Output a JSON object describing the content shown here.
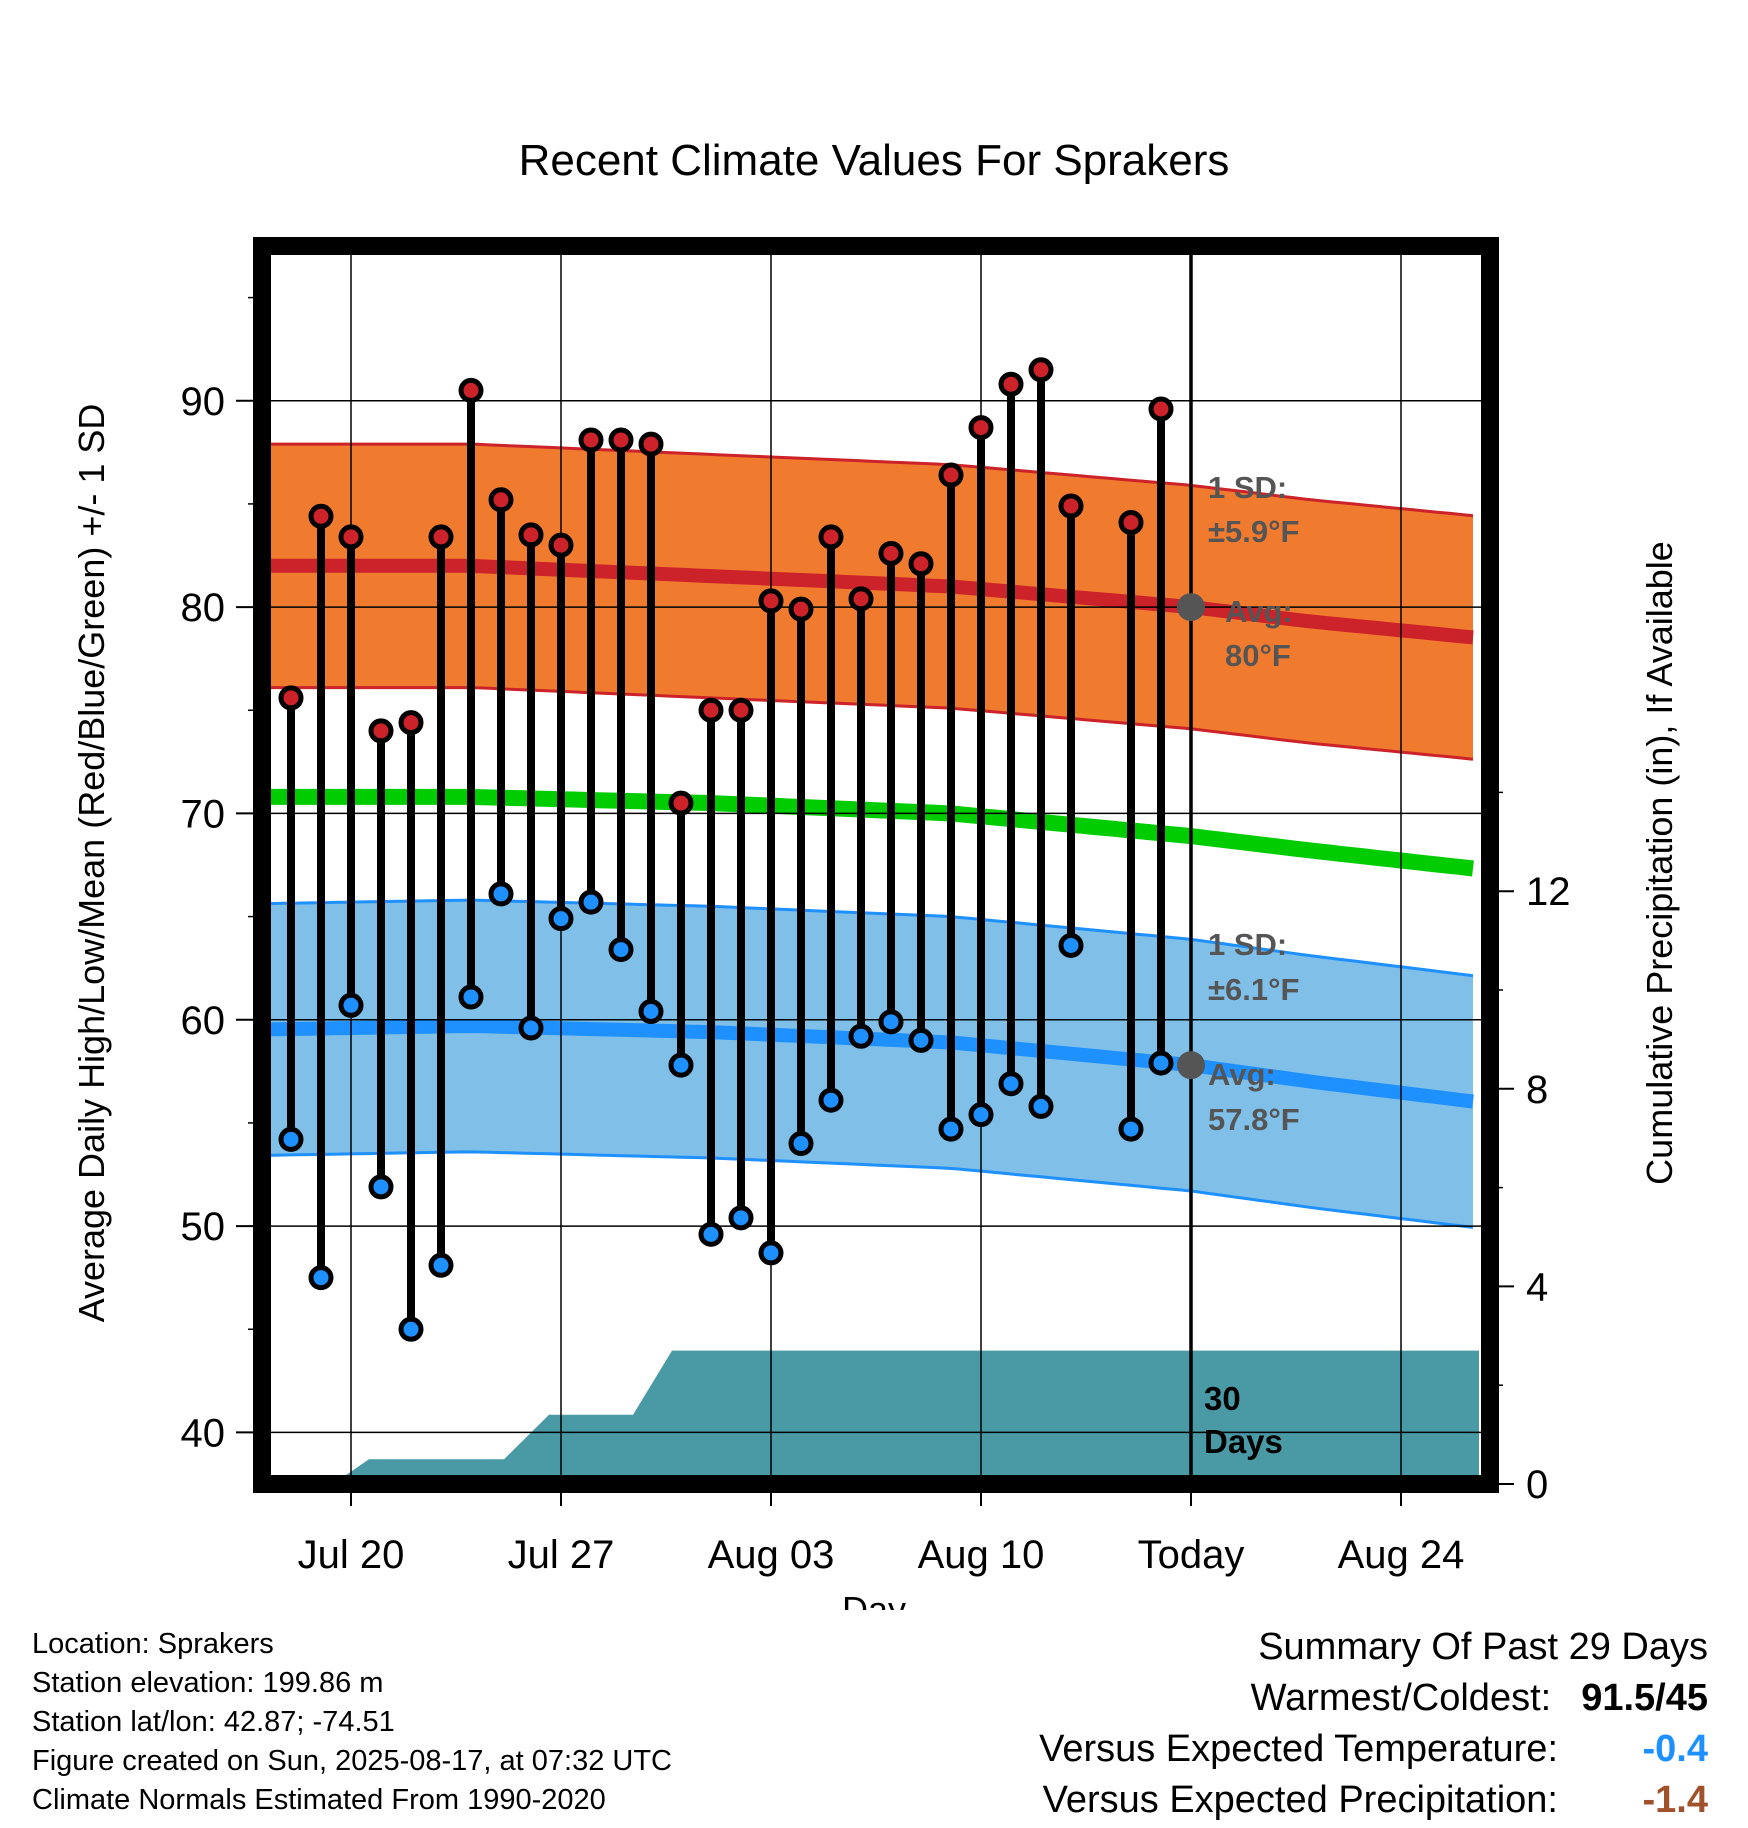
{
  "chart_data": {
    "type": "line",
    "title": "Recent Climate Values For Sprakers",
    "xlabel": "Day",
    "ylabel": "Average Daily High/Low/Mean (Red/Blue/Green) +/- 1 SD",
    "y2label": "Cumulative Precipitation (in), If Available",
    "ylim": [
      37.5,
      97.5
    ],
    "y_ticks": [
      40,
      50,
      60,
      70,
      80,
      90
    ],
    "y2lim": [
      0,
      16
    ],
    "y2_ticks": [
      0,
      4,
      8,
      12
    ],
    "x_tick_labels": [
      "Jul 20",
      "Jul 27",
      "Aug 03",
      "Aug 10",
      "Today",
      "Aug 24"
    ],
    "x_range_days": [
      -32.2,
      9.6
    ],
    "grid": true,
    "days_before_today": [
      -30,
      -29,
      -28,
      -27,
      -26,
      -25,
      -24,
      -23,
      -22,
      -21,
      -20,
      -19,
      -18,
      -17,
      -16,
      -15,
      -14,
      -13,
      -12,
      -11,
      -10,
      -9,
      -8,
      -7,
      -6,
      -5,
      -4,
      -2,
      -1
    ],
    "series": [
      {
        "name": "High",
        "color": "#cc2229",
        "values": [
          75.6,
          84.4,
          83.4,
          74.0,
          74.4,
          83.4,
          90.5,
          85.2,
          83.5,
          83.0,
          88.1,
          88.1,
          87.9,
          70.5,
          75.0,
          75.0,
          80.3,
          79.9,
          83.4,
          80.4,
          82.6,
          82.1,
          86.4,
          88.7,
          90.8,
          91.5,
          84.9,
          84.1,
          89.6
        ]
      },
      {
        "name": "Low",
        "color": "#1e90ff",
        "values": [
          54.2,
          47.5,
          60.7,
          51.9,
          45.0,
          48.1,
          61.1,
          66.1,
          59.6,
          64.9,
          65.7,
          63.4,
          60.4,
          57.8,
          49.6,
          50.4,
          48.7,
          54.0,
          56.1,
          59.2,
          59.9,
          59.0,
          54.7,
          55.4,
          56.9,
          55.8,
          63.6,
          54.7,
          57.9
        ]
      }
    ],
    "normals": {
      "high_avg": {
        "days": [
          -32,
          -24,
          -16,
          -8,
          0,
          4,
          9.6
        ],
        "values": [
          82.0,
          82.0,
          81.5,
          81.0,
          80.0,
          79.3,
          78.5
        ],
        "color": "#cc2229"
      },
      "high_sd_band": {
        "sd": 5.9,
        "color": "#f07b2f"
      },
      "mean_avg": {
        "days": [
          -32,
          -24,
          -16,
          -8,
          0,
          4,
          9.6
        ],
        "values": [
          70.8,
          70.8,
          70.5,
          70.0,
          68.9,
          68.2,
          67.3
        ],
        "color": "#00cc00"
      },
      "low_avg": {
        "days": [
          -32,
          -24,
          -16,
          -8,
          0,
          4,
          9.6
        ],
        "values": [
          59.5,
          59.7,
          59.4,
          58.9,
          57.8,
          57.0,
          56.0
        ],
        "color": "#1e90ff"
      },
      "low_sd_band": {
        "sd": 6.1,
        "color": "#7fbfe8"
      }
    },
    "precip": {
      "color": "#4a9aa5",
      "days": [
        -32.2,
        -28.6,
        -27.4,
        -22.9,
        -21.4,
        -18.6,
        -17.3,
        9.6
      ],
      "values": [
        0,
        0,
        0.5,
        0.5,
        1.4,
        1.4,
        2.7,
        2.7
      ]
    },
    "today_marker": {
      "high_avg": 80,
      "low_avg": 57.8,
      "color": "#555555"
    },
    "annotations": {
      "high_sd_line1": "1 SD:",
      "high_sd_line2": "±5.9°F",
      "high_avg_line1": "Avg:",
      "high_avg_line2": "80°F",
      "low_sd_line1": "1 SD:",
      "low_sd_line2": "±6.1°F",
      "low_avg_line1": "Avg:",
      "low_avg_line2": "57.8°F",
      "days_line1": "30",
      "days_line2": "Days"
    }
  },
  "footer": {
    "location": "Location: Sprakers",
    "elevation": "Station elevation: 199.86 m",
    "latlon": "Station lat/lon: 42.87; -74.51",
    "created": "Figure created on Sun, 2025-08-17, at 07:32 UTC",
    "normals": "Climate Normals Estimated From 1990-2020"
  },
  "summary": {
    "title": "Summary Of Past 29 Days",
    "warmest_label": "Warmest/Coldest:",
    "warmest_value": "91.5/45",
    "temp_label": "Versus Expected Temperature:",
    "temp_value": "-0.4",
    "temp_color": "#1e90ff",
    "precip_label": "Versus Expected Precipitation:",
    "precip_value": "-1.4",
    "precip_color": "#a0522d"
  }
}
